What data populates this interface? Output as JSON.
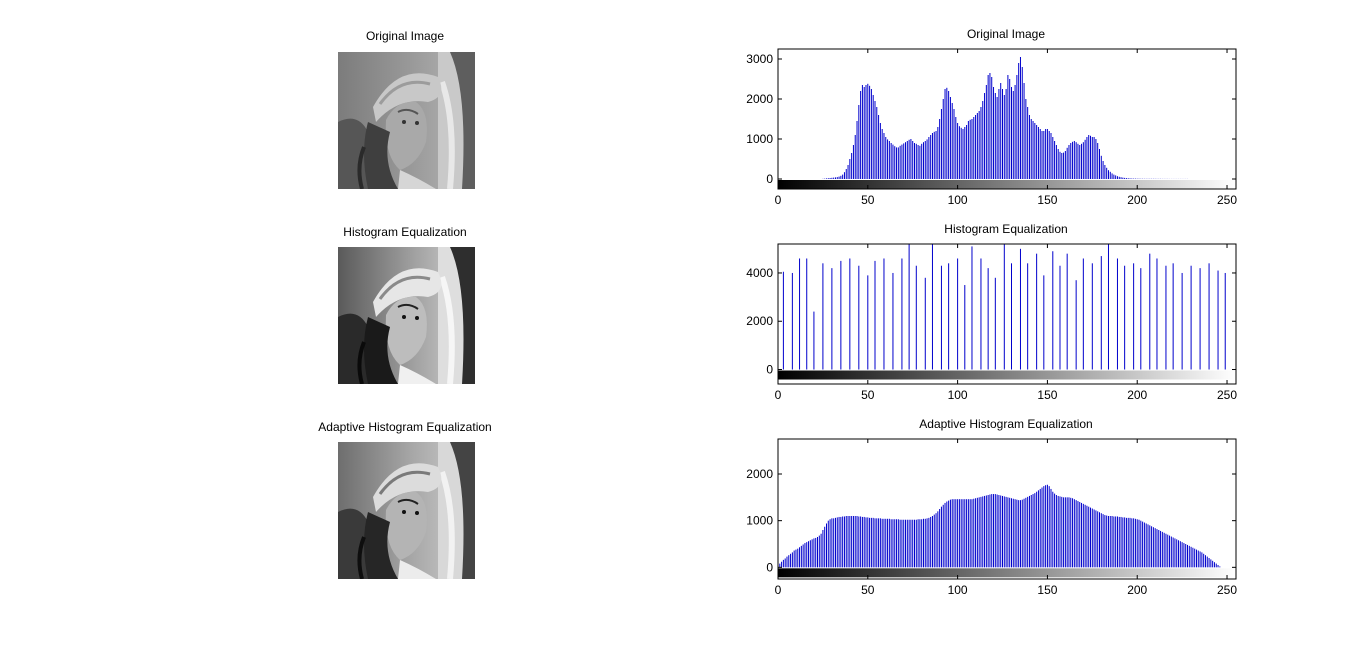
{
  "figure": {
    "images": [
      {
        "title": "Original Image"
      },
      {
        "title": "Histogram Equalization"
      },
      {
        "title": "Adaptive Histogram Equalization"
      }
    ]
  },
  "chart_data": [
    {
      "type": "bar",
      "title": "Original Image",
      "xlim": [
        0,
        255
      ],
      "ylim": [
        -250,
        3250
      ],
      "xticks": [
        0,
        50,
        100,
        150,
        200,
        250
      ],
      "yticks": [
        0,
        1000,
        2000,
        3000
      ],
      "bar_color": "#0000cc",
      "colorbar": "grayscale 0-255",
      "x_start": 0,
      "values": [
        0,
        0,
        0,
        0,
        0,
        0,
        0,
        0,
        0,
        0,
        0,
        0,
        0,
        0,
        0,
        0,
        0,
        0,
        0,
        0,
        0,
        0,
        0,
        0,
        0,
        5,
        10,
        15,
        20,
        25,
        30,
        35,
        40,
        48,
        60,
        80,
        110,
        170,
        250,
        350,
        500,
        650,
        850,
        1100,
        1450,
        1850,
        2200,
        2350,
        2300,
        2350,
        2380,
        2330,
        2250,
        2100,
        1950,
        1800,
        1600,
        1400,
        1250,
        1150,
        1050,
        990,
        950,
        900,
        860,
        820,
        790,
        790,
        830,
        860,
        890,
        920,
        950,
        980,
        1000,
        950,
        900,
        880,
        850,
        830,
        880,
        920,
        950,
        990,
        1050,
        1100,
        1150,
        1180,
        1200,
        1300,
        1500,
        1750,
        2000,
        2250,
        2280,
        2200,
        2050,
        1900,
        1750,
        1550,
        1400,
        1320,
        1280,
        1250,
        1300,
        1350,
        1450,
        1480,
        1500,
        1550,
        1600,
        1650,
        1700,
        1800,
        1950,
        2150,
        2350,
        2600,
        2650,
        2550,
        2300,
        2150,
        2050,
        2250,
        2400,
        2250,
        2100,
        2250,
        2600,
        2500,
        2300,
        2200,
        2350,
        2600,
        2900,
        3050,
        2800,
        2400,
        2000,
        1800,
        1600,
        1500,
        1450,
        1400,
        1350,
        1300,
        1250,
        1200,
        1200,
        1250,
        1250,
        1200,
        1150,
        1050,
        950,
        850,
        750,
        680,
        650,
        660,
        700,
        780,
        850,
        900,
        930,
        950,
        920,
        880,
        850,
        880,
        920,
        980,
        1050,
        1100,
        1080,
        1050,
        1050,
        1000,
        900,
        750,
        580,
        450,
        350,
        280,
        220,
        180,
        140,
        110,
        90,
        70,
        55,
        45,
        35,
        28,
        22,
        18,
        15,
        12,
        10,
        10,
        8,
        8,
        6,
        6,
        5,
        5,
        5,
        5,
        5,
        5,
        5,
        4,
        4,
        4,
        3,
        3,
        3,
        3,
        2,
        2,
        2,
        2,
        2,
        2,
        2,
        2,
        2,
        2,
        2,
        0,
        0,
        0,
        0,
        0,
        0,
        0,
        0,
        0,
        0,
        0,
        0,
        0,
        0,
        0,
        0,
        0,
        0,
        0,
        0,
        0,
        0,
        0,
        0
      ]
    },
    {
      "type": "bar",
      "title": "Histogram Equalization",
      "xlim": [
        0,
        255
      ],
      "ylim": [
        -600,
        5200
      ],
      "xticks": [
        0,
        50,
        100,
        150,
        200,
        250
      ],
      "yticks": [
        0,
        2000,
        4000
      ],
      "bar_color": "#0000cc",
      "colorbar": "grayscale 0-255",
      "bars": [
        [
          3,
          4050
        ],
        [
          8,
          4000
        ],
        [
          12,
          4600
        ],
        [
          16,
          4600
        ],
        [
          20,
          2400
        ],
        [
          25,
          4400
        ],
        [
          30,
          4200
        ],
        [
          35,
          4500
        ],
        [
          40,
          4600
        ],
        [
          45,
          4300
        ],
        [
          50,
          3900
        ],
        [
          54,
          4500
        ],
        [
          59,
          4600
        ],
        [
          64,
          4000
        ],
        [
          69,
          4600
        ],
        [
          73,
          5300
        ],
        [
          77,
          4300
        ],
        [
          82,
          3800
        ],
        [
          86,
          5300
        ],
        [
          91,
          4300
        ],
        [
          95,
          4400
        ],
        [
          100,
          4600
        ],
        [
          104,
          3500
        ],
        [
          108,
          5100
        ],
        [
          113,
          4600
        ],
        [
          117,
          4200
        ],
        [
          121,
          3800
        ],
        [
          126,
          5200
        ],
        [
          130,
          4400
        ],
        [
          135,
          5000
        ],
        [
          139,
          4400
        ],
        [
          144,
          4800
        ],
        [
          148,
          3900
        ],
        [
          153,
          4900
        ],
        [
          157,
          4300
        ],
        [
          161,
          4800
        ],
        [
          166,
          3700
        ],
        [
          170,
          4600
        ],
        [
          175,
          4400
        ],
        [
          180,
          4700
        ],
        [
          184,
          5200
        ],
        [
          189,
          4600
        ],
        [
          193,
          4300
        ],
        [
          198,
          4400
        ],
        [
          202,
          4200
        ],
        [
          207,
          4800
        ],
        [
          211,
          4600
        ],
        [
          216,
          4300
        ],
        [
          220,
          4400
        ],
        [
          225,
          4000
        ],
        [
          230,
          4300
        ],
        [
          235,
          4200
        ],
        [
          240,
          4400
        ],
        [
          245,
          4100
        ],
        [
          249,
          4000
        ]
      ]
    },
    {
      "type": "bar",
      "title": "Adaptive Histogram Equalization",
      "xlim": [
        0,
        255
      ],
      "ylim": [
        -250,
        2750
      ],
      "xticks": [
        0,
        50,
        100,
        150,
        200,
        250
      ],
      "yticks": [
        0,
        1000,
        2000
      ],
      "bar_color": "#0000cc",
      "colorbar": "grayscale 0-255",
      "x_start": 0,
      "values": [
        10,
        80,
        120,
        160,
        190,
        230,
        260,
        290,
        320,
        360,
        380,
        400,
        430,
        460,
        490,
        520,
        540,
        560,
        580,
        600,
        620,
        630,
        650,
        680,
        720,
        800,
        870,
        940,
        1000,
        1030,
        1050,
        1050,
        1060,
        1070,
        1080,
        1080,
        1090,
        1090,
        1100,
        1100,
        1100,
        1100,
        1100,
        1100,
        1100,
        1090,
        1090,
        1080,
        1080,
        1070,
        1070,
        1060,
        1060,
        1060,
        1050,
        1050,
        1050,
        1050,
        1040,
        1040,
        1040,
        1040,
        1040,
        1030,
        1030,
        1030,
        1030,
        1030,
        1020,
        1020,
        1020,
        1020,
        1020,
        1020,
        1020,
        1020,
        1020,
        1020,
        1030,
        1030,
        1030,
        1040,
        1040,
        1050,
        1060,
        1080,
        1100,
        1130,
        1160,
        1200,
        1250,
        1300,
        1340,
        1380,
        1410,
        1430,
        1450,
        1460,
        1460,
        1460,
        1460,
        1460,
        1460,
        1460,
        1460,
        1460,
        1460,
        1460,
        1460,
        1470,
        1480,
        1490,
        1500,
        1510,
        1520,
        1530,
        1540,
        1550,
        1560,
        1570,
        1570,
        1570,
        1560,
        1550,
        1540,
        1530,
        1520,
        1510,
        1500,
        1490,
        1480,
        1470,
        1460,
        1450,
        1440,
        1440,
        1450,
        1470,
        1490,
        1510,
        1530,
        1550,
        1570,
        1590,
        1620,
        1650,
        1680,
        1710,
        1740,
        1760,
        1770,
        1740,
        1680,
        1620,
        1580,
        1550,
        1530,
        1520,
        1510,
        1500,
        1500,
        1500,
        1500,
        1490,
        1480,
        1460,
        1440,
        1420,
        1400,
        1380,
        1360,
        1340,
        1320,
        1300,
        1280,
        1260,
        1240,
        1220,
        1200,
        1180,
        1160,
        1140,
        1120,
        1110,
        1100,
        1100,
        1100,
        1090,
        1090,
        1090,
        1080,
        1080,
        1070,
        1070,
        1060,
        1060,
        1060,
        1050,
        1050,
        1040,
        1030,
        1020,
        1000,
        980,
        960,
        940,
        920,
        900,
        880,
        860,
        840,
        820,
        800,
        780,
        760,
        740,
        720,
        700,
        680,
        660,
        640,
        620,
        600,
        580,
        560,
        540,
        520,
        500,
        480,
        460,
        440,
        420,
        400,
        380,
        360,
        340,
        320,
        290,
        260,
        230,
        200,
        170,
        140,
        110,
        80,
        50,
        20,
        0,
        0,
        0
      ]
    }
  ]
}
